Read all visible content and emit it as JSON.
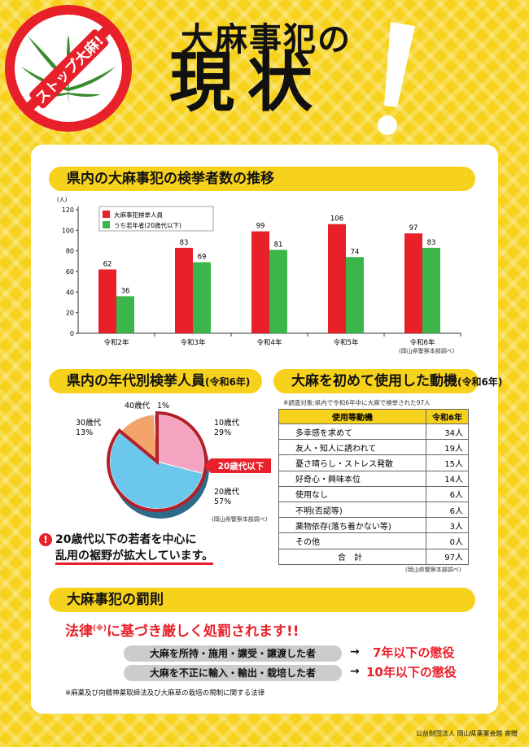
{
  "header": {
    "badge_text": "ストップ大麻!",
    "title_small": "大麻事犯の",
    "title_big": "現状"
  },
  "colors": {
    "accent_yellow": "#f7d21c",
    "red": "#e8202a",
    "green": "#3cb54a",
    "pink": "#f4a3c0",
    "blue": "#6cc7ec",
    "orange": "#f2a46b"
  },
  "section1": {
    "title": "県内の大麻事犯の検挙者数の推移",
    "source": "(岡山県警察本部調べ)"
  },
  "chart_data": [
    {
      "type": "bar",
      "ylabel": "(人)",
      "ylim": [
        0,
        120
      ],
      "yticks": [
        0,
        20,
        40,
        60,
        80,
        100,
        120
      ],
      "categories": [
        "令和2年",
        "令和3年",
        "令和4年",
        "令和5年",
        "令和6年"
      ],
      "series": [
        {
          "name": "大麻事犯検挙人員",
          "values": [
            62,
            83,
            99,
            106,
            97
          ],
          "color": "#e8202a"
        },
        {
          "name": "うち若年者(20歳代以下)",
          "values": [
            36,
            69,
            81,
            74,
            83
          ],
          "color": "#3cb54a"
        }
      ],
      "legend": "top-left",
      "grid": false
    },
    {
      "type": "pie",
      "slices": [
        {
          "label": "10歳代",
          "value": 29,
          "pct": "29%",
          "color": "#f4a3c0"
        },
        {
          "label": "20歳代",
          "value": 57,
          "pct": "57%",
          "color": "#6cc7ec"
        },
        {
          "label": "30歳代",
          "value": 13,
          "pct": "13%",
          "color": "#f2a46b"
        },
        {
          "label": "40歳代",
          "value": 1,
          "pct": "1%",
          "color": "#b58ac4"
        }
      ],
      "highlight": "20歳代以下"
    }
  ],
  "section2": {
    "title": "県内の年代別検挙人員",
    "title_sub": "(令和6年)",
    "source": "(岡山県警察本部調べ)",
    "callout_line1": "20歳代以下の若者を中心に",
    "callout_line2": "乱用の裾野が拡大しています。",
    "warn_symbol": "!"
  },
  "section3": {
    "title": "大麻を初めて使用した動機",
    "title_sub": "(令和6年)",
    "survey_note": "※調査対象:県内で令和6年中に大麻で検挙された97人",
    "headers": [
      "使用等動機",
      "令和6年"
    ],
    "rows": [
      [
        "多幸感を求めて",
        "34人"
      ],
      [
        "友人・知人に誘われて",
        "19人"
      ],
      [
        "憂さ晴らし・ストレス発散",
        "15人"
      ],
      [
        "好奇心・興味本位",
        "14人"
      ],
      [
        "使用なし",
        "6人"
      ],
      [
        "不明(否認等)",
        "6人"
      ],
      [
        "薬物依存(落ち着かない等)",
        "3人"
      ],
      [
        "その他",
        "0人"
      ]
    ],
    "total_label": "合　計",
    "total_value": "97人",
    "source": "(岡山県警察本部調べ)"
  },
  "section4": {
    "title": "大麻事犯の罰則",
    "law_prefix": "法律",
    "law_mark": "(※)",
    "law_suffix": "に基づき厳しく処罰されます!!",
    "penalties": [
      {
        "act": "大麻を所持・施用・譲受・譲渡した者",
        "result": "7年以下の懲役"
      },
      {
        "act": "大麻を不正に輸入・輸出・栽培した者",
        "result": "10年以下の懲役"
      }
    ],
    "arrow": "→",
    "footnote": "※麻薬及び向精神薬取締法及び大麻草の栽培の規制に関する法律"
  },
  "credit": "公益財団法人 岡山県薬業会館 寄贈"
}
